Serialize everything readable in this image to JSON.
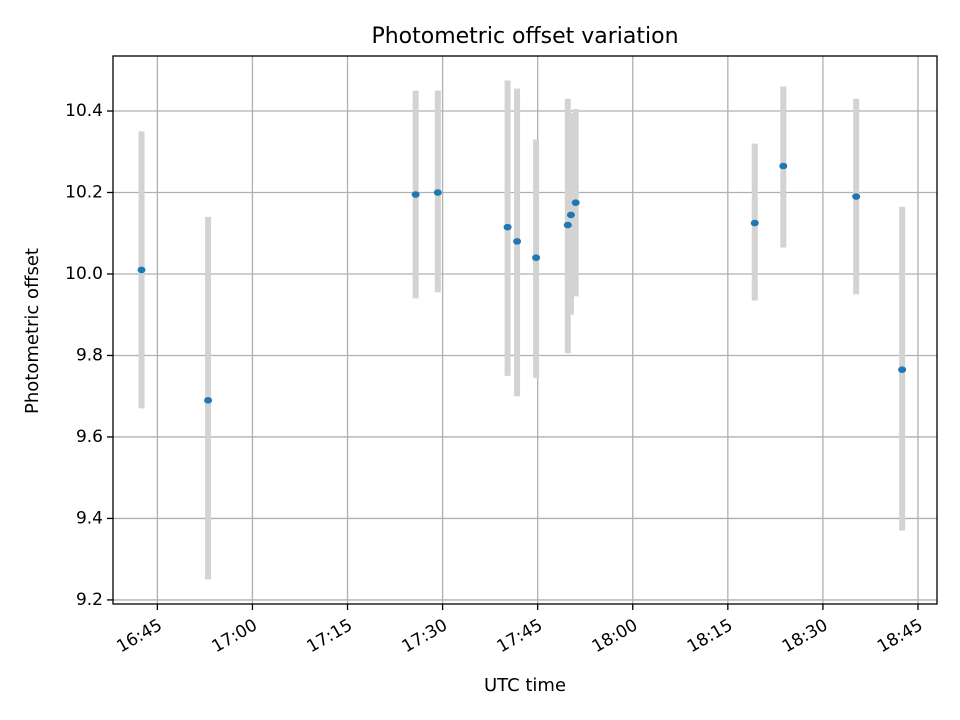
{
  "chart_data": {
    "type": "scatter",
    "title": "Photometric offset variation",
    "xlabel": "UTC time",
    "ylabel": "Photometric offset",
    "x_ticks": [
      "16:45",
      "17:00",
      "17:15",
      "17:30",
      "17:45",
      "18:00",
      "18:15",
      "18:30",
      "18:45"
    ],
    "y_ticks": [
      "9.2",
      "9.4",
      "9.6",
      "9.8",
      "10.0",
      "10.2",
      "10.4"
    ],
    "xlim": [
      "16:38",
      "18:48"
    ],
    "ylim": [
      9.19,
      10.535
    ],
    "grid": true,
    "colors": {
      "point": "#1f77b4",
      "errorbar": "#d3d3d3",
      "grid": "#b0b0b0"
    },
    "points": [
      {
        "x": "16:42:30",
        "y": 10.01,
        "ylow": 9.67,
        "yhigh": 10.35
      },
      {
        "x": "16:53:00",
        "y": 9.69,
        "ylow": 9.25,
        "yhigh": 10.14
      },
      {
        "x": "17:25:45",
        "y": 10.195,
        "ylow": 9.94,
        "yhigh": 10.45
      },
      {
        "x": "17:29:15",
        "y": 10.2,
        "ylow": 9.955,
        "yhigh": 10.45
      },
      {
        "x": "17:40:15",
        "y": 10.115,
        "ylow": 9.75,
        "yhigh": 10.475
      },
      {
        "x": "17:41:45",
        "y": 10.08,
        "ylow": 9.7,
        "yhigh": 10.455
      },
      {
        "x": "17:44:45",
        "y": 10.04,
        "ylow": 9.745,
        "yhigh": 10.33
      },
      {
        "x": "17:49:45",
        "y": 10.12,
        "ylow": 9.805,
        "yhigh": 10.43
      },
      {
        "x": "17:50:15",
        "y": 10.145,
        "ylow": 9.9,
        "yhigh": 10.395
      },
      {
        "x": "17:51:00",
        "y": 10.175,
        "ylow": 9.945,
        "yhigh": 10.405
      },
      {
        "x": "18:19:15",
        "y": 10.125,
        "ylow": 9.935,
        "yhigh": 10.32
      },
      {
        "x": "18:23:45",
        "y": 10.265,
        "ylow": 10.065,
        "yhigh": 10.46
      },
      {
        "x": "18:35:15",
        "y": 10.19,
        "ylow": 9.95,
        "yhigh": 10.43
      },
      {
        "x": "18:42:30",
        "y": 9.765,
        "ylow": 9.37,
        "yhigh": 10.165
      }
    ]
  }
}
